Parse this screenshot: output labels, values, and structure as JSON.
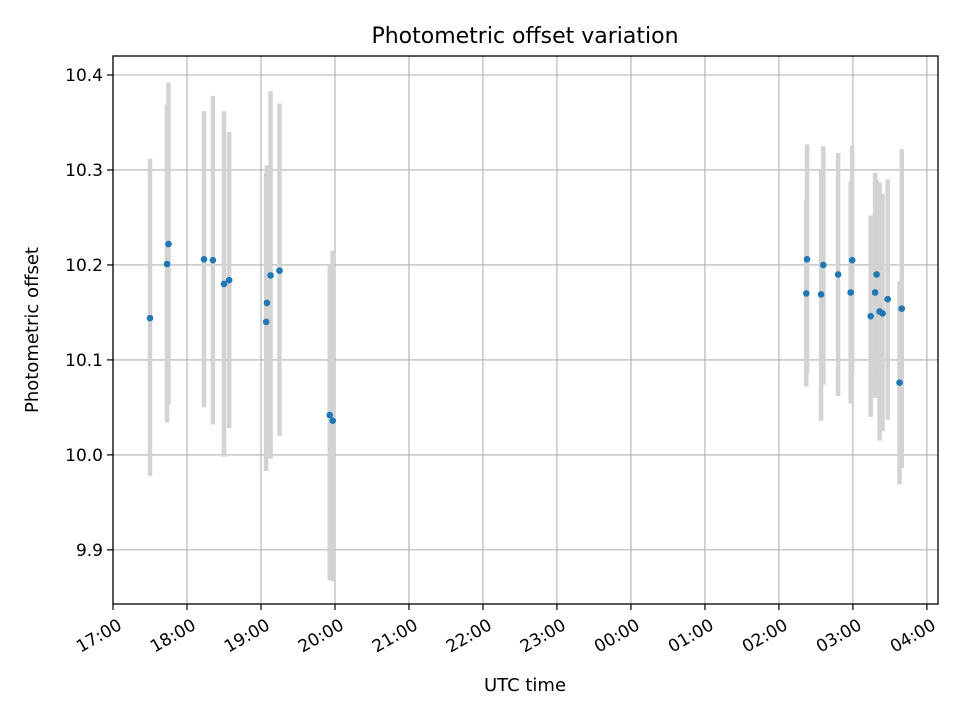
{
  "chart_data": {
    "type": "scatter",
    "title": "Photometric offset variation",
    "xlabel": "UTC time",
    "ylabel": "Photometric offset",
    "x_unit": "hours",
    "xlim": [
      17.0,
      28.15
    ],
    "ylim": [
      9.843,
      10.42
    ],
    "x_ticks": [
      {
        "value": 17,
        "label": "17:00"
      },
      {
        "value": 18,
        "label": "18:00"
      },
      {
        "value": 19,
        "label": "19:00"
      },
      {
        "value": 20,
        "label": "20:00"
      },
      {
        "value": 21,
        "label": "21:00"
      },
      {
        "value": 22,
        "label": "22:00"
      },
      {
        "value": 23,
        "label": "23:00"
      },
      {
        "value": 24,
        "label": "00:00"
      },
      {
        "value": 25,
        "label": "01:00"
      },
      {
        "value": 26,
        "label": "02:00"
      },
      {
        "value": 27,
        "label": "03:00"
      },
      {
        "value": 28,
        "label": "04:00"
      }
    ],
    "y_ticks": [
      {
        "value": 9.9,
        "label": "9.9"
      },
      {
        "value": 10.0,
        "label": "10.0"
      },
      {
        "value": 10.1,
        "label": "10.1"
      },
      {
        "value": 10.2,
        "label": "10.2"
      },
      {
        "value": 10.3,
        "label": "10.3"
      },
      {
        "value": 10.4,
        "label": "10.4"
      }
    ],
    "grid": true,
    "colors": {
      "marker": "#1f77b4",
      "errorbar": "#d3d3d3",
      "grid": "#b0b0b0"
    },
    "points": [
      {
        "x": 17.5,
        "y": 10.144,
        "ylo": 9.978,
        "yhi": 10.312
      },
      {
        "x": 17.73,
        "y": 10.201,
        "ylo": 10.034,
        "yhi": 10.369
      },
      {
        "x": 17.75,
        "y": 10.222,
        "ylo": 10.053,
        "yhi": 10.392
      },
      {
        "x": 18.23,
        "y": 10.206,
        "ylo": 10.05,
        "yhi": 10.362
      },
      {
        "x": 18.35,
        "y": 10.205,
        "ylo": 10.032,
        "yhi": 10.378
      },
      {
        "x": 18.5,
        "y": 10.18,
        "ylo": 9.998,
        "yhi": 10.362
      },
      {
        "x": 18.57,
        "y": 10.184,
        "ylo": 10.028,
        "yhi": 10.34
      },
      {
        "x": 19.07,
        "y": 10.14,
        "ylo": 9.983,
        "yhi": 10.297
      },
      {
        "x": 19.08,
        "y": 10.16,
        "ylo": 10.01,
        "yhi": 10.305
      },
      {
        "x": 19.13,
        "y": 10.189,
        "ylo": 9.996,
        "yhi": 10.383
      },
      {
        "x": 19.25,
        "y": 10.194,
        "ylo": 10.02,
        "yhi": 10.37
      },
      {
        "x": 19.93,
        "y": 10.042,
        "ylo": 9.868,
        "yhi": 10.2
      },
      {
        "x": 19.97,
        "y": 10.036,
        "ylo": 9.867,
        "yhi": 10.215
      },
      {
        "x": 26.37,
        "y": 10.17,
        "ylo": 10.072,
        "yhi": 10.268
      },
      {
        "x": 26.38,
        "y": 10.206,
        "ylo": 10.085,
        "yhi": 10.327
      },
      {
        "x": 26.57,
        "y": 10.169,
        "ylo": 10.036,
        "yhi": 10.3
      },
      {
        "x": 26.6,
        "y": 10.2,
        "ylo": 10.074,
        "yhi": 10.325
      },
      {
        "x": 26.8,
        "y": 10.19,
        "ylo": 10.062,
        "yhi": 10.318
      },
      {
        "x": 26.97,
        "y": 10.171,
        "ylo": 10.054,
        "yhi": 10.288
      },
      {
        "x": 26.99,
        "y": 10.205,
        "ylo": 10.085,
        "yhi": 10.326
      },
      {
        "x": 27.24,
        "y": 10.146,
        "ylo": 10.04,
        "yhi": 10.252
      },
      {
        "x": 27.3,
        "y": 10.171,
        "ylo": 10.06,
        "yhi": 10.297
      },
      {
        "x": 27.32,
        "y": 10.19,
        "ylo": 10.08,
        "yhi": 10.29
      },
      {
        "x": 27.36,
        "y": 10.151,
        "ylo": 10.015,
        "yhi": 10.287
      },
      {
        "x": 27.4,
        "y": 10.149,
        "ylo": 10.025,
        "yhi": 10.275
      },
      {
        "x": 27.47,
        "y": 10.164,
        "ylo": 10.037,
        "yhi": 10.29
      },
      {
        "x": 27.63,
        "y": 10.076,
        "ylo": 9.969,
        "yhi": 10.183
      },
      {
        "x": 27.66,
        "y": 10.154,
        "ylo": 9.986,
        "yhi": 10.322
      }
    ]
  }
}
